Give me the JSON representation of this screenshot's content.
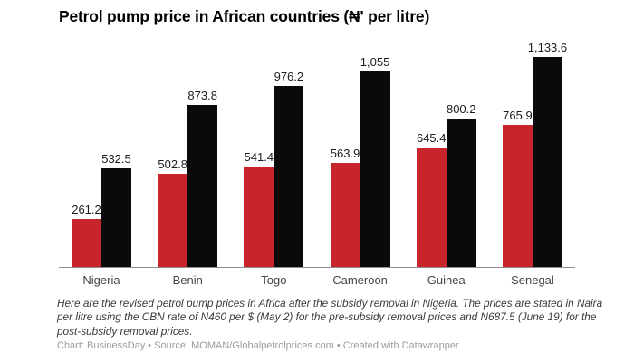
{
  "title": "Petrol pump price in African countries (₦' per litre)",
  "note": "Here are the revised petrol pump prices in Africa after the subsidy removal in Nigeria. The prices are stated in Naira per litre using the CBN rate of N460 per $ (May 2) for the pre-subsidy removal prices and N687.5 (June 19) for the post-subsidy removal prices.",
  "footer": "Chart: BusinessDay • Source: MOMAN/Globalpetrolprices.com • Created with Datawrapper",
  "colors": {
    "pre_subsidy_bar": "#c7242b",
    "post_subsidy_bar": "#0a0a0a",
    "axis_line": "#8f8f8f",
    "value_label": "#1c1c1c",
    "category_label": "#454545",
    "footer_text": "#9b9b9b"
  },
  "chart_data": {
    "type": "bar",
    "title": "Petrol pump price in African countries (₦' per litre)",
    "categories": [
      "Nigeria",
      "Benin",
      "Togo",
      "Cameroon",
      "Guinea",
      "Senegal"
    ],
    "series": [
      {
        "name": "pre-subsidy removal price",
        "color": "#c7242b",
        "values": [
          261.2,
          502.8,
          541.4,
          563.9,
          645.4,
          765.9
        ],
        "labels": [
          "261.2",
          "502.8",
          "541.4",
          "563.9",
          "645.4",
          "765.9"
        ]
      },
      {
        "name": "post-subsidy removal price",
        "color": "#0a0a0a",
        "values": [
          532.5,
          873.8,
          976.2,
          1055,
          800.2,
          1133.6
        ],
        "labels": [
          "532.5",
          "873.8",
          "976.2",
          "1,055",
          "800.2",
          "1,133.6"
        ]
      }
    ],
    "xlabel": "",
    "ylabel": "",
    "ylim": [
      0,
      1133.6
    ],
    "grid": false,
    "legend": "none",
    "value_labels_shown": true
  }
}
